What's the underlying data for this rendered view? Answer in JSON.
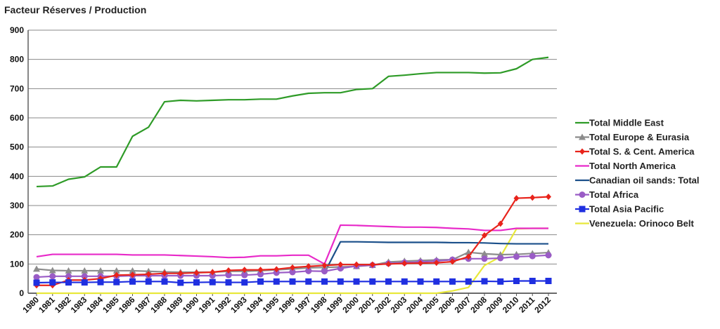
{
  "chart_data": {
    "type": "line",
    "title": "Facteur Réserves / Production",
    "xlabel": "",
    "ylabel": "",
    "ylim": [
      0,
      900
    ],
    "yticks": [
      0,
      100,
      200,
      300,
      400,
      500,
      600,
      700,
      800,
      900
    ],
    "grid": "horizontal",
    "legend_position": "right",
    "x": [
      "1980",
      "1981",
      "1982",
      "1983",
      "1984",
      "1985",
      "1986",
      "1987",
      "1988",
      "1989",
      "1990",
      "1991",
      "1992",
      "1993",
      "1994",
      "1995",
      "1996",
      "1997",
      "1998",
      "1999",
      "2000",
      "2001",
      "2002",
      "2003",
      "2004",
      "2005",
      "2006",
      "2007",
      "2008",
      "2009",
      "2010",
      "2011",
      "2012"
    ],
    "series": [
      {
        "name": "Total Middle East",
        "color": "#2e9b27",
        "marker": "none",
        "values": [
          365,
          367,
          390,
          398,
          432,
          432,
          537,
          568,
          655,
          660,
          658,
          660,
          662,
          662,
          664,
          664,
          675,
          684,
          686,
          686,
          697,
          700,
          742,
          746,
          751,
          755,
          755,
          755,
          753,
          754,
          768,
          800,
          807
        ]
      },
      {
        "name": "Total Europe & Eurasia",
        "color": "#8c8c8c",
        "marker": "triangle",
        "values": [
          83,
          78,
          77,
          77,
          77,
          77,
          77,
          75,
          73,
          72,
          72,
          72,
          75,
          75,
          77,
          80,
          83,
          87,
          88,
          90,
          92,
          96,
          107,
          110,
          112,
          114,
          115,
          140,
          135,
          132,
          133,
          136,
          139
        ]
      },
      {
        "name": "Total S. & Cent. America",
        "color": "#e8231b",
        "marker": "diamond",
        "values": [
          27,
          27,
          45,
          45,
          50,
          62,
          63,
          65,
          68,
          68,
          70,
          72,
          78,
          80,
          80,
          82,
          88,
          92,
          95,
          98,
          98,
          98,
          100,
          102,
          103,
          104,
          108,
          125,
          198,
          238,
          325,
          327,
          330
        ]
      },
      {
        "name": "Total North America",
        "color": "#e82ac9",
        "marker": "none",
        "values": [
          125,
          133,
          133,
          133,
          133,
          133,
          131,
          131,
          131,
          129,
          127,
          125,
          122,
          123,
          128,
          128,
          130,
          130,
          100,
          233,
          232,
          230,
          228,
          226,
          226,
          225,
          222,
          220,
          215,
          215,
          222,
          222,
          222
        ]
      },
      {
        "name": "Canadian oil sands: Total",
        "color": "#1a4f8a",
        "marker": "none",
        "values": [
          null,
          null,
          null,
          null,
          null,
          null,
          null,
          null,
          null,
          null,
          null,
          null,
          null,
          null,
          null,
          null,
          null,
          null,
          70,
          176,
          176,
          175,
          174,
          174,
          174,
          174,
          173,
          173,
          172,
          170,
          169,
          169,
          169
        ]
      },
      {
        "name": "Total Africa",
        "color": "#9a5cc6",
        "marker": "circle",
        "values": [
          55,
          58,
          58,
          58,
          58,
          58,
          60,
          60,
          60,
          60,
          60,
          60,
          62,
          62,
          65,
          70,
          72,
          76,
          75,
          85,
          93,
          96,
          102,
          105,
          107,
          110,
          115,
          118,
          118,
          120,
          125,
          127,
          130
        ]
      },
      {
        "name": "Total Asia Pacific",
        "color": "#1f2fe0",
        "marker": "square",
        "values": [
          36,
          37,
          37,
          37,
          38,
          38,
          40,
          40,
          40,
          36,
          37,
          38,
          37,
          37,
          40,
          40,
          40,
          40,
          40,
          40,
          40,
          40,
          40,
          40,
          40,
          40,
          40,
          40,
          41,
          40,
          42,
          42,
          42
        ]
      },
      {
        "name": "Venezuela: Orinoco Belt",
        "color": "#e8e83a",
        "marker": "none",
        "values": [
          0,
          0,
          0,
          0,
          0,
          0,
          0,
          0,
          0,
          0,
          0,
          0,
          0,
          0,
          0,
          0,
          0,
          0,
          0,
          0,
          0,
          0,
          0,
          0,
          0,
          0,
          8,
          20,
          95,
          125,
          220,
          222,
          222
        ]
      }
    ]
  }
}
